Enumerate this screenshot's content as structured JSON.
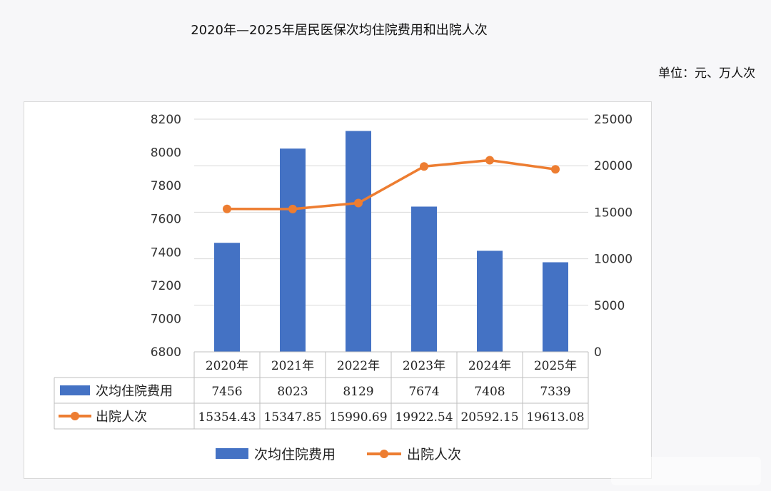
{
  "title": "2020年—2025年居民医保次均住院费用和出院人次",
  "unit": "单位：元、万人次",
  "colors": {
    "bar": "#4472c4",
    "line": "#ed7d31",
    "grid": "#d9d9d9"
  },
  "chart_data": {
    "type": "bar",
    "categories": [
      "2020年",
      "2021年",
      "2022年",
      "2023年",
      "2024年",
      "2025年"
    ],
    "series": [
      {
        "name": "次均住院费用",
        "type": "bar",
        "axis": "left",
        "values": [
          7456,
          8023,
          8129,
          7674,
          7408,
          7339
        ],
        "display": [
          "7456",
          "8023",
          "8129",
          "7674",
          "7408",
          "7339"
        ]
      },
      {
        "name": "出院人次",
        "type": "line",
        "axis": "right",
        "values": [
          15354.43,
          15347.85,
          15990.69,
          19922.54,
          20592.15,
          19613.08
        ],
        "display": [
          "15354.43",
          "15347.85",
          "15990.69",
          "19922.54",
          "20592.15",
          "19613.08"
        ]
      }
    ],
    "y_left": {
      "min": 6800,
      "max": 8200,
      "ticks": [
        "8200",
        "8000",
        "7800",
        "7600",
        "7400",
        "7200",
        "7000",
        "6800"
      ]
    },
    "y_right": {
      "min": 0,
      "max": 25000,
      "ticks": [
        "25000",
        "20000",
        "15000",
        "10000",
        "5000",
        "0"
      ]
    },
    "grid": true,
    "data_table": true,
    "legend": "bottom"
  }
}
